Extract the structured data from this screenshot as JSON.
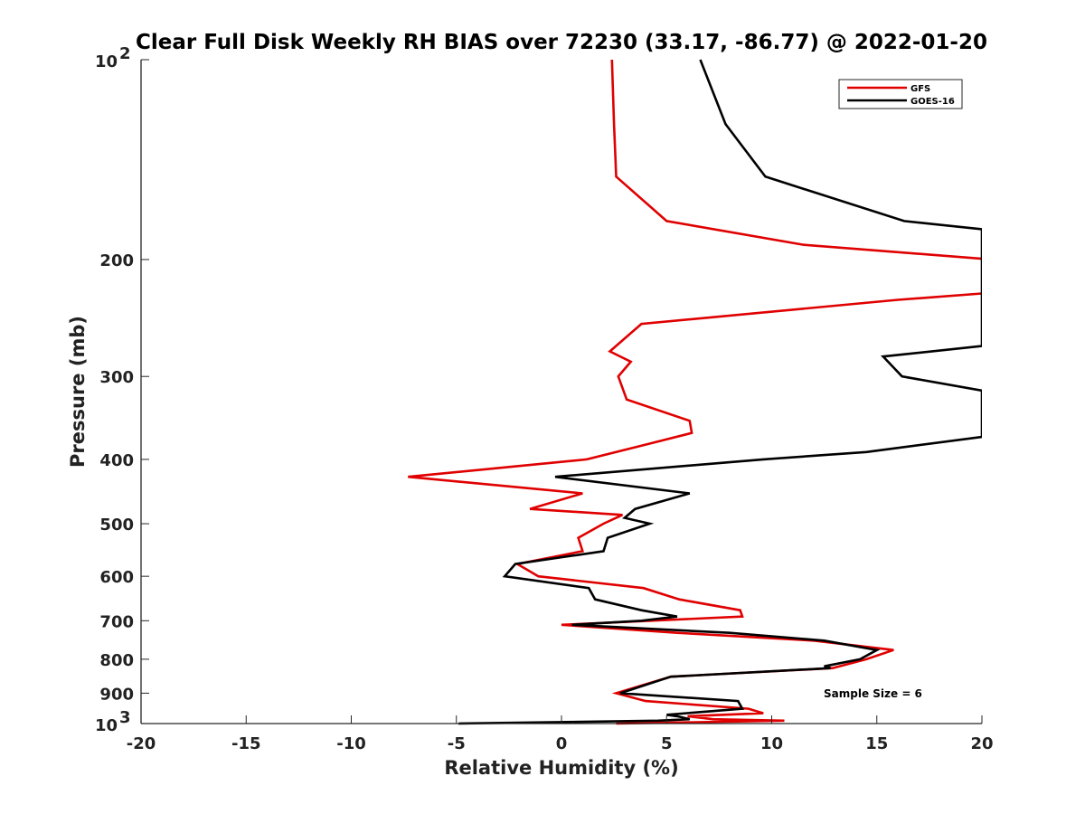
{
  "chart_data": {
    "type": "line",
    "title": "Clear Full Disk Weekly RH BIAS over 72230 (33.17, -86.77) @ 2022-01-20",
    "xlabel": "Relative Humidity (%)",
    "ylabel": "Pressure (mb)",
    "xlim": [
      -20,
      20
    ],
    "ylim": [
      100,
      1000
    ],
    "y_scale": "log",
    "y_reversed": true,
    "grid": false,
    "legend_position": "top-right",
    "x_ticks": [
      "-20",
      "-15",
      "-10",
      "-5",
      "0",
      "5",
      "10",
      "15",
      "20"
    ],
    "y_ticks": [
      {
        "value": 100,
        "base": "10",
        "exp": "2"
      },
      {
        "value": 200,
        "label": "200"
      },
      {
        "value": 300,
        "label": "300"
      },
      {
        "value": 400,
        "label": "400"
      },
      {
        "value": 500,
        "label": "500"
      },
      {
        "value": 600,
        "label": "600"
      },
      {
        "value": 700,
        "label": "700"
      },
      {
        "value": 800,
        "label": "800"
      },
      {
        "value": 900,
        "label": "900"
      },
      {
        "value": 1000,
        "base": "10",
        "exp": "3"
      }
    ],
    "annotation": "Sample Size = 6",
    "series": [
      {
        "name": "GFS",
        "color": "#e00000",
        "points": [
          [
            2.4,
            100
          ],
          [
            2.5,
            125
          ],
          [
            2.6,
            150
          ],
          [
            5.0,
            175
          ],
          [
            11.5,
            190
          ],
          [
            20.5,
            200
          ],
          [
            20.0,
            225
          ],
          [
            16.0,
            230
          ],
          [
            3.8,
            250
          ],
          [
            2.3,
            275
          ],
          [
            3.3,
            285
          ],
          [
            2.7,
            300
          ],
          [
            3.1,
            325
          ],
          [
            6.1,
            350
          ],
          [
            6.2,
            365
          ],
          [
            4.0,
            380
          ],
          [
            1.2,
            400
          ],
          [
            -7.3,
            425
          ],
          [
            1.0,
            450
          ],
          [
            -1.5,
            475
          ],
          [
            2.9,
            485
          ],
          [
            2.0,
            500
          ],
          [
            0.8,
            525
          ],
          [
            1.0,
            550
          ],
          [
            -2.1,
            575
          ],
          [
            -1.1,
            600
          ],
          [
            3.9,
            625
          ],
          [
            5.6,
            650
          ],
          [
            8.5,
            675
          ],
          [
            8.6,
            690
          ],
          [
            0.0,
            710
          ],
          [
            5.5,
            730
          ],
          [
            12.0,
            750
          ],
          [
            15.8,
            775
          ],
          [
            14.5,
            800
          ],
          [
            12.9,
            825
          ],
          [
            5.2,
            850
          ],
          [
            2.6,
            900
          ],
          [
            4.0,
            925
          ],
          [
            8.9,
            950
          ],
          [
            9.6,
            965
          ],
          [
            6.0,
            975
          ],
          [
            7.2,
            985
          ],
          [
            10.6,
            990
          ],
          [
            2.6,
            1000
          ]
        ]
      },
      {
        "name": "GOES-16",
        "color": "#000000",
        "points": [
          [
            6.6,
            100
          ],
          [
            7.8,
            125
          ],
          [
            9.7,
            150
          ],
          [
            16.3,
            175
          ],
          [
            20.0,
            180
          ],
          [
            20.0,
            270
          ],
          [
            15.3,
            280
          ],
          [
            16.2,
            300
          ],
          [
            20.0,
            315
          ],
          [
            20.0,
            370
          ],
          [
            14.5,
            390
          ],
          [
            9.6,
            400
          ],
          [
            -0.3,
            425
          ],
          [
            6.1,
            450
          ],
          [
            3.5,
            475
          ],
          [
            3.0,
            490
          ],
          [
            4.2,
            500
          ],
          [
            2.2,
            525
          ],
          [
            2.0,
            550
          ],
          [
            -2.2,
            575
          ],
          [
            -2.7,
            600
          ],
          [
            1.3,
            625
          ],
          [
            1.6,
            650
          ],
          [
            3.8,
            675
          ],
          [
            5.5,
            690
          ],
          [
            3.8,
            700
          ],
          [
            0.5,
            710
          ],
          [
            8.0,
            730
          ],
          [
            12.5,
            750
          ],
          [
            15.0,
            775
          ],
          [
            14.2,
            800
          ],
          [
            12.5,
            820
          ],
          [
            12.8,
            825
          ],
          [
            5.2,
            850
          ],
          [
            2.8,
            900
          ],
          [
            8.4,
            925
          ],
          [
            8.6,
            950
          ],
          [
            5.0,
            970
          ],
          [
            5.5,
            975
          ],
          [
            6.1,
            985
          ],
          [
            4.6,
            990
          ],
          [
            -4.9,
            1000
          ]
        ]
      }
    ]
  }
}
